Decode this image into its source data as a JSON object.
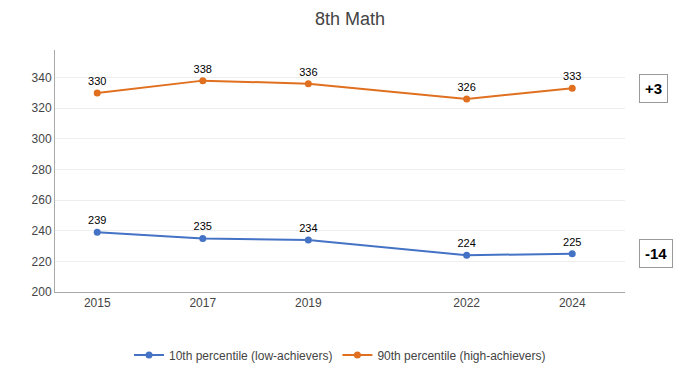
{
  "chart_data": {
    "type": "line",
    "title": "8th Math",
    "x": [
      2015,
      2017,
      2019,
      2022,
      2024
    ],
    "series": [
      {
        "name": "10th percentile (low-achievers)",
        "color": "#4472C4",
        "marker": "circle",
        "values": [
          239,
          235,
          234,
          224,
          225
        ]
      },
      {
        "name": "90th percentile (high-achievers)",
        "color": "#E07020",
        "marker": "circle",
        "values": [
          330,
          338,
          336,
          326,
          333
        ]
      }
    ],
    "xlim": [
      2014.2,
      2025.0
    ],
    "xticks": [
      2015,
      2017,
      2019,
      2022,
      2024
    ],
    "ylim": [
      200,
      358
    ],
    "yticks": [
      200,
      220,
      240,
      260,
      280,
      300,
      320,
      340
    ],
    "grid": true,
    "legend": "bottom",
    "data_labels": true,
    "annotations": [
      {
        "text": "-14",
        "series": "10th percentile (low-achievers)"
      },
      {
        "text": "+3",
        "series": "90th percentile (high-achievers)"
      }
    ]
  }
}
